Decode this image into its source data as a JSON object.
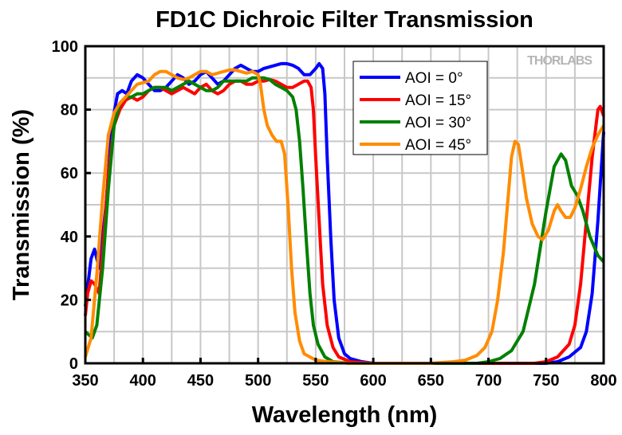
{
  "chart_data": {
    "type": "line",
    "title": "FD1C Dichroic Filter Transmission",
    "xlabel": "Wavelength (nm)",
    "ylabel": "Transmission (%)",
    "xlim": [
      350,
      800
    ],
    "ylim": [
      0,
      100
    ],
    "xticks": [
      350,
      400,
      450,
      500,
      550,
      600,
      650,
      700,
      750,
      800
    ],
    "yticks": [
      0,
      20,
      40,
      60,
      80,
      100
    ],
    "grid": true,
    "legend_position": "top-right",
    "watermark": "THORLABS",
    "series": [
      {
        "name": "AOI = 0°",
        "color": "#0000ff",
        "x": [
          350,
          355,
          358,
          362,
          368,
          373,
          378,
          382,
          386,
          390,
          395,
          400,
          405,
          410,
          415,
          420,
          425,
          430,
          435,
          440,
          445,
          450,
          455,
          460,
          465,
          470,
          475,
          480,
          485,
          490,
          495,
          500,
          505,
          510,
          515,
          520,
          525,
          530,
          535,
          540,
          545,
          550,
          553,
          556,
          558,
          560,
          563,
          566,
          570,
          575,
          580,
          590,
          600,
          750,
          760,
          770,
          780,
          785,
          790,
          795,
          800
        ],
        "y": [
          18,
          33,
          36,
          30,
          50,
          75,
          85,
          86,
          85,
          89,
          91,
          90,
          88,
          86,
          86,
          87,
          89,
          91,
          90,
          88,
          89,
          91,
          92,
          90,
          88,
          89,
          91,
          93,
          94,
          93,
          92,
          92,
          93,
          93.5,
          94,
          94.5,
          94.5,
          94,
          93,
          91,
          91,
          93,
          94.5,
          93,
          85,
          65,
          40,
          20,
          8,
          3,
          1.5,
          0.5,
          0,
          0,
          0.5,
          2,
          5,
          10,
          22,
          45,
          73
        ]
      },
      {
        "name": "AOI = 15°",
        "color": "#ff0000",
        "x": [
          350,
          352,
          355,
          358,
          362,
          366,
          370,
          375,
          380,
          385,
          390,
          395,
          400,
          405,
          410,
          415,
          420,
          425,
          430,
          435,
          440,
          445,
          450,
          455,
          460,
          465,
          470,
          475,
          480,
          485,
          490,
          495,
          500,
          505,
          510,
          515,
          520,
          525,
          530,
          535,
          540,
          543,
          546,
          548,
          550,
          553,
          556,
          560,
          565,
          570,
          580,
          600,
          740,
          750,
          760,
          770,
          775,
          780,
          785,
          790,
          795,
          797,
          800
        ],
        "y": [
          15,
          22,
          26,
          25,
          22,
          40,
          60,
          75,
          80,
          83,
          84,
          83,
          84,
          86,
          87,
          87,
          86,
          85,
          86,
          87,
          86,
          85,
          87,
          88,
          86,
          85,
          86,
          88,
          89,
          89,
          88,
          88,
          89,
          89,
          89.5,
          89,
          88,
          87,
          87,
          88,
          89,
          89,
          87,
          80,
          65,
          45,
          25,
          12,
          5,
          2,
          0.5,
          0,
          0,
          0.5,
          2,
          6,
          12,
          25,
          45,
          65,
          80,
          81,
          78
        ]
      },
      {
        "name": "AOI = 30°",
        "color": "#008000",
        "x": [
          350,
          353,
          356,
          360,
          365,
          370,
          375,
          380,
          385,
          390,
          395,
          400,
          405,
          410,
          415,
          420,
          425,
          430,
          435,
          440,
          445,
          450,
          455,
          460,
          465,
          470,
          475,
          480,
          485,
          490,
          495,
          500,
          505,
          510,
          515,
          520,
          525,
          530,
          533,
          536,
          539,
          542,
          545,
          548,
          552,
          558,
          565,
          580,
          690,
          700,
          710,
          720,
          730,
          740,
          750,
          757,
          763,
          767,
          772,
          777,
          782,
          788,
          795,
          800
        ],
        "y": [
          10,
          9,
          8,
          12,
          30,
          55,
          75,
          82,
          84,
          84,
          85,
          85,
          86,
          87,
          87,
          87,
          86,
          87,
          88,
          89,
          88,
          87,
          86,
          86,
          87,
          89,
          89,
          89,
          89,
          89,
          90,
          90,
          90,
          89.5,
          88,
          87,
          86,
          84,
          80,
          70,
          55,
          38,
          22,
          12,
          6,
          2,
          0.5,
          0,
          0,
          0.5,
          1.5,
          4,
          10,
          25,
          48,
          62,
          66,
          64,
          56,
          53,
          48,
          40,
          34,
          32
        ]
      },
      {
        "name": "AOI = 45°",
        "color": "#ff8c00",
        "x": [
          350,
          355,
          360,
          365,
          370,
          375,
          380,
          385,
          390,
          395,
          400,
          405,
          410,
          415,
          420,
          425,
          430,
          435,
          440,
          445,
          450,
          455,
          460,
          465,
          470,
          475,
          480,
          485,
          490,
          495,
          500,
          502,
          505,
          508,
          512,
          516,
          520,
          523,
          526,
          529,
          532,
          536,
          540,
          550,
          560,
          580,
          650,
          670,
          680,
          690,
          697,
          703,
          708,
          713,
          717,
          720,
          723,
          726,
          729,
          733,
          738,
          743,
          747,
          752,
          757,
          760,
          763,
          767,
          771,
          775,
          780,
          785,
          790,
          795,
          800
        ],
        "y": [
          2,
          8,
          28,
          52,
          72,
          79,
          82,
          84,
          86,
          88,
          88.5,
          89,
          91,
          92,
          92,
          91,
          90,
          89.5,
          90,
          91,
          92,
          92,
          91,
          91.5,
          92,
          92.5,
          92.5,
          92,
          91.5,
          92,
          91,
          88,
          80,
          75,
          72,
          70,
          70,
          66,
          50,
          30,
          16,
          7,
          3,
          1,
          0.5,
          0,
          0,
          0.5,
          1,
          2.5,
          5,
          10,
          20,
          35,
          52,
          65,
          70,
          69,
          62,
          52,
          44,
          40,
          39,
          42,
          48,
          50,
          48,
          46,
          46,
          49,
          55,
          62,
          68,
          72,
          75
        ]
      }
    ]
  }
}
